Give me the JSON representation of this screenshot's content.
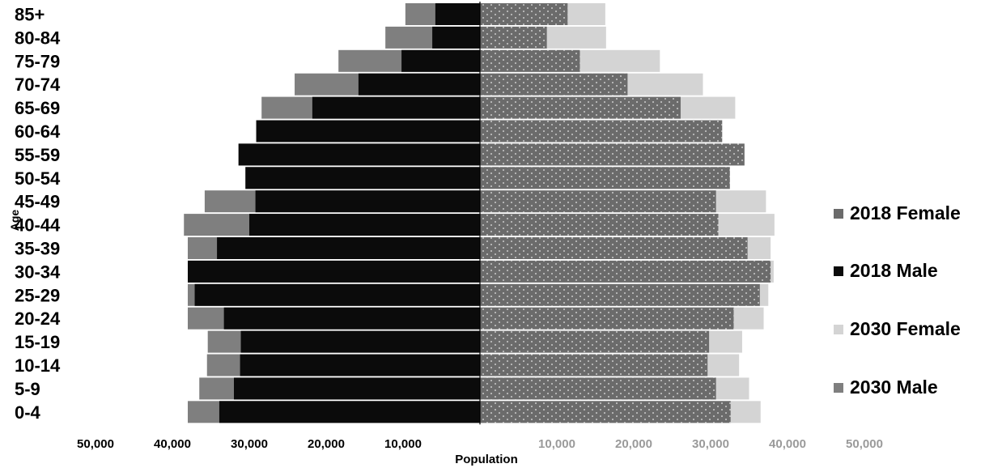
{
  "chart_data": {
    "type": "bar",
    "orientation": "horizontal",
    "layout": "population-pyramid",
    "ylabel": "Age",
    "xlabel": "Population",
    "categories": [
      "0-4",
      "5-9",
      "10-14",
      "15-19",
      "20-24",
      "25-29",
      "30-34",
      "35-39",
      "40-44",
      "45-49",
      "50-54",
      "55-59",
      "60-64",
      "65-69",
      "70-74",
      "75-79",
      "80-84",
      "85+"
    ],
    "left_ticks": [
      "50,000",
      "40,000",
      "30,000",
      "20,000",
      "10,000"
    ],
    "right_ticks": [
      "10,000",
      "20,000",
      "30,000",
      "40,000",
      "50,000"
    ],
    "xlim": [
      0,
      50000
    ],
    "grid": false,
    "legend_position": "right",
    "series": [
      {
        "name": "2018 Female",
        "side": "right",
        "color": "#6b6b6b",
        "pattern": "dots",
        "values": [
          32600,
          30700,
          29600,
          29800,
          33000,
          36400,
          37800,
          34800,
          31000,
          30700,
          32500,
          34400,
          31500,
          26100,
          19200,
          13000,
          8700,
          11400
        ]
      },
      {
        "name": "2018 Male",
        "side": "left",
        "color": "#0b0b0b",
        "values": [
          33900,
          32000,
          31200,
          31100,
          33300,
          37100,
          38000,
          34200,
          30000,
          29200,
          30500,
          31400,
          29100,
          21800,
          15800,
          10200,
          6200,
          5800
        ]
      },
      {
        "name": "2030 Female",
        "side": "right",
        "color": "#d4d4d4",
        "values": [
          36500,
          35000,
          33700,
          34100,
          36900,
          37500,
          38200,
          37800,
          38300,
          37200,
          32500,
          34400,
          31500,
          33200,
          29000,
          23400,
          16400,
          16300
        ]
      },
      {
        "name": "2030 Male",
        "side": "left",
        "color": "#7f7f7f",
        "values": [
          38000,
          36500,
          35500,
          35400,
          38000,
          38000,
          38000,
          38000,
          38500,
          35800,
          30500,
          31400,
          29100,
          28400,
          24100,
          18400,
          12300,
          9700
        ]
      }
    ]
  }
}
